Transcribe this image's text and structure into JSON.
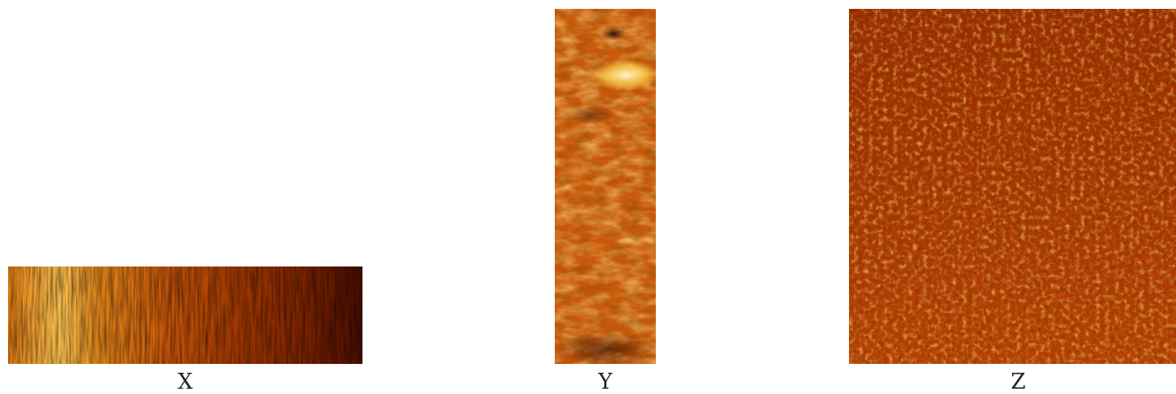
{
  "panels": [
    {
      "id": "x",
      "label": "X"
    },
    {
      "id": "y",
      "label": "Y"
    },
    {
      "id": "z",
      "label": "Z"
    }
  ],
  "colors": {
    "colormap_dark": "#3a0a00",
    "colormap_mid": "#c04a00",
    "colormap_bright": "#ffd24a",
    "colormap_highlight": "#fff6c8"
  }
}
